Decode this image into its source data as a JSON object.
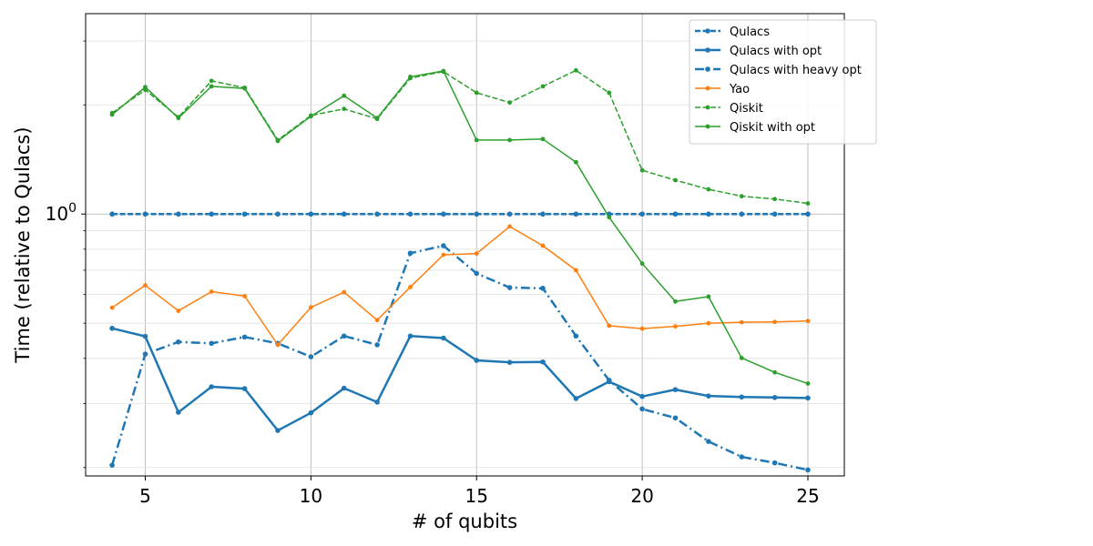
{
  "chart_data": {
    "type": "line",
    "title": "",
    "xlabel": "# of qubits",
    "ylabel": "Time (relative to Qulacs)",
    "xlim": [
      3.2,
      26.1
    ],
    "ylim": [
      0.1896,
      3.57
    ],
    "y_scale": "log",
    "grid": true,
    "legend_position": "upper right",
    "x_ticks": [
      5,
      10,
      15,
      20,
      25
    ],
    "x_tick_labels": [
      "5",
      "10",
      "15",
      "20",
      "25"
    ],
    "y_major_tick": {
      "value": 1,
      "label_base": "10",
      "label_exp": "0"
    },
    "y_minor_ticks": [
      0.2,
      0.3,
      0.4,
      0.5,
      0.6,
      0.7,
      0.8,
      0.9,
      2,
      3
    ],
    "x": [
      4,
      5,
      6,
      7,
      8,
      9,
      10,
      11,
      12,
      13,
      14,
      15,
      16,
      17,
      18,
      19,
      20,
      21,
      22,
      23,
      24,
      25
    ],
    "series": [
      {
        "name": "Qulacs",
        "color": "#1f77b4",
        "dash": "dashed",
        "width": 2.5,
        "values": [
          1,
          1,
          1,
          1,
          1,
          1,
          1,
          1,
          1,
          1,
          1,
          1,
          1,
          1,
          1,
          1,
          1,
          1,
          1,
          1,
          1,
          1
        ]
      },
      {
        "name": "Qulacs with opt",
        "color": "#1f77b4",
        "dash": "solid",
        "width": 2.5,
        "values": [
          0.484,
          0.46,
          0.284,
          0.334,
          0.33,
          0.253,
          0.283,
          0.331,
          0.303,
          0.461,
          0.455,
          0.395,
          0.39,
          0.391,
          0.31,
          0.345,
          0.314,
          0.328,
          0.315,
          0.313,
          0.312,
          0.311
        ]
      },
      {
        "name": "Qulacs with heavy opt",
        "color": "#1f77b4",
        "dash": "dashdot",
        "width": 2.5,
        "values": [
          0.203,
          0.411,
          0.444,
          0.44,
          0.458,
          0.44,
          0.404,
          0.461,
          0.436,
          0.78,
          0.818,
          0.686,
          0.627,
          0.624,
          0.461,
          0.348,
          0.29,
          0.274,
          0.236,
          0.214,
          0.206,
          0.197
        ]
      },
      {
        "name": "Yao",
        "color": "#ff7f0e",
        "dash": "solid",
        "width": 1.5,
        "values": [
          0.552,
          0.636,
          0.541,
          0.611,
          0.594,
          0.436,
          0.553,
          0.609,
          0.51,
          0.629,
          0.772,
          0.778,
          0.924,
          0.818,
          0.7,
          0.492,
          0.483,
          0.49,
          0.5,
          0.503,
          0.504,
          0.507
        ]
      },
      {
        "name": "Qiskit",
        "color": "#2ca02c",
        "dash": "dashed",
        "width": 1.5,
        "values": [
          1.9,
          2.2,
          1.85,
          2.33,
          2.23,
          1.6,
          1.87,
          1.95,
          1.83,
          2.37,
          2.47,
          2.16,
          2.03,
          2.25,
          2.49,
          2.16,
          1.32,
          1.24,
          1.17,
          1.12,
          1.1,
          1.07
        ]
      },
      {
        "name": "Qiskit with opt",
        "color": "#2ca02c",
        "dash": "solid",
        "width": 1.5,
        "values": [
          1.88,
          2.24,
          1.84,
          2.25,
          2.22,
          1.59,
          1.86,
          2.12,
          1.84,
          2.39,
          2.48,
          1.6,
          1.6,
          1.61,
          1.39,
          0.98,
          0.73,
          0.574,
          0.592,
          0.401,
          0.366,
          0.341
        ]
      }
    ]
  }
}
